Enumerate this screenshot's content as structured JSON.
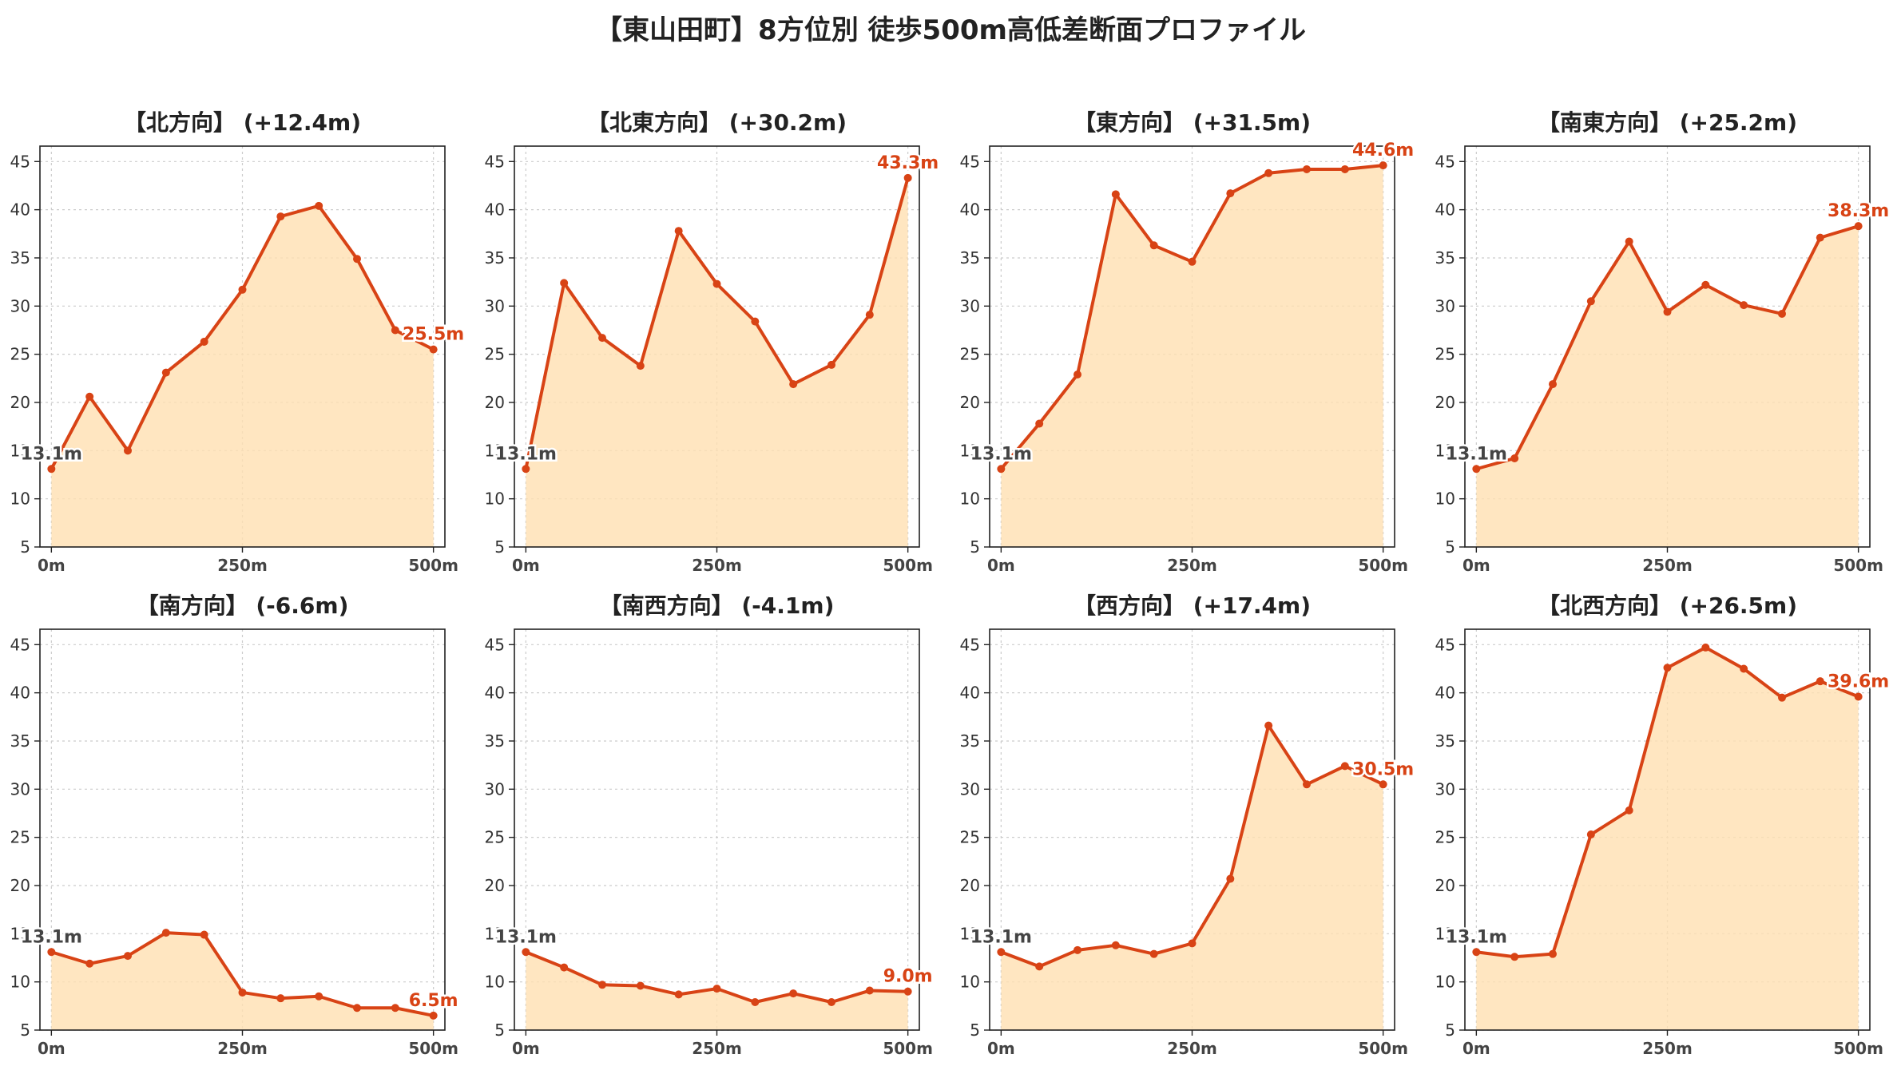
{
  "title": "【東山田町】8方位別 徒歩500m高低差断面プロファイル",
  "colors": {
    "line": "#d84315",
    "fill": "#ffe0b2",
    "grid": "#cccccc"
  },
  "chart_data": [
    {
      "type": "area",
      "title": "【北方向】 (+12.4m)",
      "x": [
        0,
        50,
        100,
        150,
        200,
        250,
        300,
        350,
        400,
        450,
        500
      ],
      "y": [
        13.1,
        20.6,
        15.0,
        23.1,
        26.3,
        31.7,
        39.3,
        40.4,
        34.9,
        27.5,
        25.5
      ],
      "start_label": "13.1m",
      "end_label": "25.5m"
    },
    {
      "type": "area",
      "title": "【北東方向】 (+30.2m)",
      "x": [
        0,
        50,
        100,
        150,
        200,
        250,
        300,
        350,
        400,
        450,
        500
      ],
      "y": [
        13.1,
        32.4,
        26.7,
        23.8,
        37.8,
        32.3,
        28.4,
        21.9,
        23.9,
        29.1,
        43.3
      ],
      "start_label": "13.1m",
      "end_label": "43.3m"
    },
    {
      "type": "area",
      "title": "【東方向】 (+31.5m)",
      "x": [
        0,
        50,
        100,
        150,
        200,
        250,
        300,
        350,
        400,
        450,
        500
      ],
      "y": [
        13.1,
        17.8,
        22.9,
        41.6,
        36.3,
        34.6,
        41.7,
        43.8,
        44.2,
        44.2,
        44.6
      ],
      "start_label": "13.1m",
      "end_label": "44.6m"
    },
    {
      "type": "area",
      "title": "【南東方向】 (+25.2m)",
      "x": [
        0,
        50,
        100,
        150,
        200,
        250,
        300,
        350,
        400,
        450,
        500
      ],
      "y": [
        13.1,
        14.2,
        21.9,
        30.5,
        36.7,
        29.4,
        32.2,
        30.1,
        29.2,
        37.1,
        38.3
      ],
      "start_label": "13.1m",
      "end_label": "38.3m"
    },
    {
      "type": "area",
      "title": "【南方向】 (-6.6m)",
      "x": [
        0,
        50,
        100,
        150,
        200,
        250,
        300,
        350,
        400,
        450,
        500
      ],
      "y": [
        13.1,
        11.9,
        12.7,
        15.1,
        14.9,
        8.9,
        8.3,
        8.5,
        7.3,
        7.3,
        6.5
      ],
      "start_label": "13.1m",
      "end_label": "6.5m"
    },
    {
      "type": "area",
      "title": "【南西方向】 (-4.1m)",
      "x": [
        0,
        50,
        100,
        150,
        200,
        250,
        300,
        350,
        400,
        450,
        500
      ],
      "y": [
        13.1,
        11.5,
        9.7,
        9.6,
        8.7,
        9.3,
        7.9,
        8.8,
        7.9,
        9.1,
        9.0
      ],
      "start_label": "13.1m",
      "end_label": "9.0m"
    },
    {
      "type": "area",
      "title": "【西方向】 (+17.4m)",
      "x": [
        0,
        50,
        100,
        150,
        200,
        250,
        300,
        350,
        400,
        450,
        500
      ],
      "y": [
        13.1,
        11.6,
        13.3,
        13.8,
        12.9,
        14.0,
        20.7,
        36.6,
        30.5,
        32.4,
        30.5
      ],
      "start_label": "13.1m",
      "end_label": "30.5m"
    },
    {
      "type": "area",
      "title": "【北西方向】 (+26.5m)",
      "x": [
        0,
        50,
        100,
        150,
        200,
        250,
        300,
        350,
        400,
        450,
        500
      ],
      "y": [
        13.1,
        12.6,
        12.9,
        25.3,
        27.8,
        42.6,
        44.7,
        42.5,
        39.5,
        41.2,
        39.6
      ],
      "start_label": "13.1m",
      "end_label": "39.6m"
    }
  ],
  "y_range": [
    5,
    46.6
  ],
  "y_ticks": [
    5,
    10,
    15,
    20,
    25,
    30,
    35,
    40,
    45
  ],
  "x_range": [
    -15,
    515
  ],
  "x_ticks": [
    0,
    250,
    500
  ],
  "x_tick_labels": [
    "0m",
    "250m",
    "500m"
  ],
  "grid": true
}
